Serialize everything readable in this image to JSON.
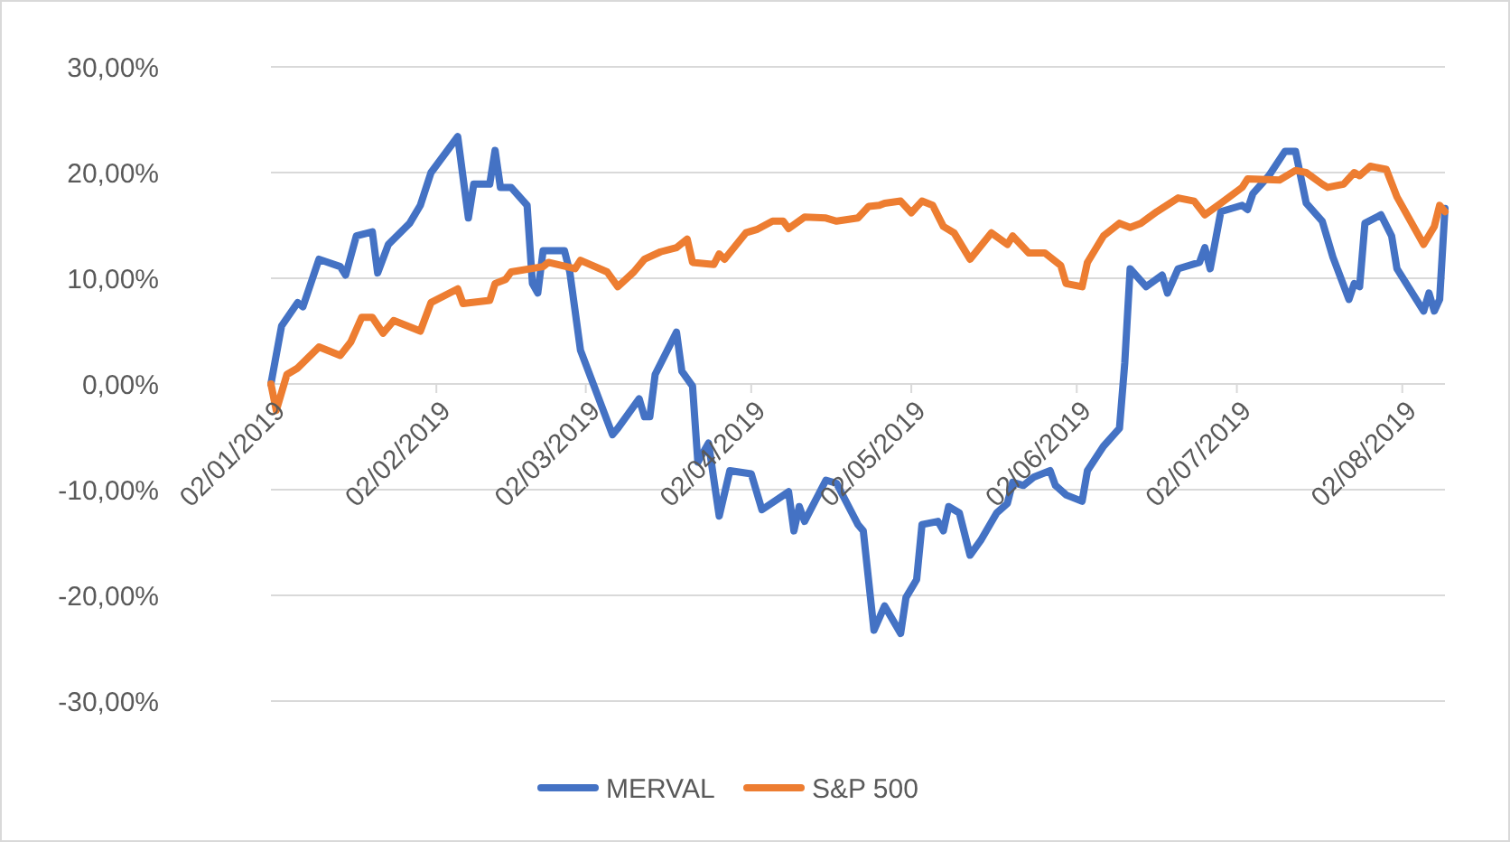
{
  "chart_data": {
    "type": "line",
    "legend": "bottom",
    "grid": "y",
    "line_style": "solid",
    "xlim": [
      "2019-01-02",
      "2019-08-10"
    ],
    "xticks": [
      {
        "value": "2019-01-02",
        "label": "02/01/2019"
      },
      {
        "value": "2019-02-02",
        "label": "02/02/2019"
      },
      {
        "value": "2019-03-02",
        "label": "02/03/2019"
      },
      {
        "value": "2019-04-02",
        "label": "02/04/2019"
      },
      {
        "value": "2019-05-02",
        "label": "02/05/2019"
      },
      {
        "value": "2019-06-02",
        "label": "02/06/2019"
      },
      {
        "value": "2019-07-02",
        "label": "02/07/2019"
      },
      {
        "value": "2019-08-02",
        "label": "02/08/2019"
      }
    ],
    "ylim": [
      -30,
      30
    ],
    "yticks": [
      {
        "value": -30,
        "label": "-30,00%"
      },
      {
        "value": -20,
        "label": "-20,00%"
      },
      {
        "value": -10,
        "label": "-10,00%"
      },
      {
        "value": 0,
        "label": "0,00%"
      },
      {
        "value": 10,
        "label": "10,00%"
      },
      {
        "value": 20,
        "label": "20,00%"
      },
      {
        "value": 30,
        "label": "30,00%"
      }
    ],
    "series": [
      {
        "name": "MERVAL",
        "color": "#4472c4",
        "x": [
          "2019-01-02",
          "2019-01-04",
          "2019-01-07",
          "2019-01-08",
          "2019-01-11",
          "2019-01-15",
          "2019-01-16",
          "2019-01-18",
          "2019-01-21",
          "2019-01-22",
          "2019-01-24",
          "2019-01-28",
          "2019-01-30",
          "2019-02-01",
          "2019-02-06",
          "2019-02-08",
          "2019-02-09",
          "2019-02-12",
          "2019-02-13",
          "2019-02-14",
          "2019-02-16",
          "2019-02-19",
          "2019-02-20",
          "2019-02-21",
          "2019-02-22",
          "2019-02-26",
          "2019-02-27",
          "2019-03-01",
          "2019-03-07",
          "2019-03-08",
          "2019-03-12",
          "2019-03-13",
          "2019-03-14",
          "2019-03-15",
          "2019-03-19",
          "2019-03-20",
          "2019-03-22",
          "2019-03-23",
          "2019-03-25",
          "2019-03-27",
          "2019-03-29",
          "2019-04-02",
          "2019-04-04",
          "2019-04-09",
          "2019-04-10",
          "2019-04-11",
          "2019-04-12",
          "2019-04-16",
          "2019-04-18",
          "2019-04-22",
          "2019-04-23",
          "2019-04-25",
          "2019-04-27",
          "2019-04-30",
          "2019-05-01",
          "2019-05-03",
          "2019-05-04",
          "2019-05-07",
          "2019-05-08",
          "2019-05-09",
          "2019-05-11",
          "2019-05-13",
          "2019-05-15",
          "2019-05-18",
          "2019-05-20",
          "2019-05-21",
          "2019-05-23",
          "2019-05-25",
          "2019-05-28",
          "2019-05-29",
          "2019-05-31",
          "2019-06-03",
          "2019-06-04",
          "2019-06-07",
          "2019-06-10",
          "2019-06-11",
          "2019-06-12",
          "2019-06-15",
          "2019-06-18",
          "2019-06-19",
          "2019-06-21",
          "2019-06-25",
          "2019-06-26",
          "2019-06-27",
          "2019-06-29",
          "2019-07-03",
          "2019-07-04",
          "2019-07-05",
          "2019-07-08",
          "2019-07-11",
          "2019-07-13",
          "2019-07-15",
          "2019-07-18",
          "2019-07-20",
          "2019-07-23",
          "2019-07-24",
          "2019-07-25",
          "2019-07-26",
          "2019-07-29",
          "2019-07-31",
          "2019-08-01",
          "2019-08-06",
          "2019-08-07",
          "2019-08-08",
          "2019-08-09",
          "2019-08-10"
        ],
        "values": [
          0,
          5.5,
          7.7,
          7.3,
          11.8,
          11.1,
          10.3,
          14.0,
          14.4,
          10.5,
          13.2,
          15.2,
          16.9,
          20.0,
          23.4,
          15.7,
          18.9,
          18.9,
          22.1,
          18.6,
          18.6,
          16.9,
          9.5,
          8.6,
          12.6,
          12.6,
          10.6,
          3.2,
          -4.8,
          -4.2,
          -1.4,
          -3.1,
          -3.1,
          0.9,
          4.9,
          1.2,
          -0.2,
          -7.4,
          -5.6,
          -12.5,
          -8.2,
          -8.5,
          -11.9,
          -10.2,
          -13.9,
          -11.6,
          -13.0,
          -9.1,
          -9.4,
          -13.3,
          -13.9,
          -23.3,
          -21.0,
          -23.6,
          -20.2,
          -18.5,
          -13.3,
          -13.0,
          -13.9,
          -11.6,
          -12.2,
          -16.2,
          -14.8,
          -12.2,
          -11.3,
          -9.3,
          -9.6,
          -8.8,
          -8.2,
          -9.6,
          -10.5,
          -11.1,
          -8.2,
          -5.9,
          -4.2,
          2.0,
          10.9,
          9.2,
          10.3,
          8.6,
          10.9,
          11.5,
          12.9,
          10.9,
          16.3,
          16.9,
          16.5,
          18.0,
          19.7,
          22.0,
          22.0,
          17.1,
          15.4,
          12.0,
          8.0,
          9.5,
          9.2,
          15.2,
          16.0,
          14.0,
          10.9,
          6.9,
          8.6,
          6.9,
          8.0,
          16.6
        ]
      },
      {
        "name": "S&P 500",
        "color": "#ed7d31",
        "x": [
          "2019-01-02",
          "2019-01-03",
          "2019-01-05",
          "2019-01-07",
          "2019-01-11",
          "2019-01-15",
          "2019-01-17",
          "2019-01-19",
          "2019-01-21",
          "2019-01-23",
          "2019-01-25",
          "2019-01-30",
          "2019-02-01",
          "2019-02-06",
          "2019-02-07",
          "2019-02-12",
          "2019-02-13",
          "2019-02-15",
          "2019-02-16",
          "2019-02-22",
          "2019-02-23",
          "2019-02-28",
          "2019-03-01",
          "2019-03-06",
          "2019-03-08",
          "2019-03-11",
          "2019-03-13",
          "2019-03-16",
          "2019-03-19",
          "2019-03-21",
          "2019-03-22",
          "2019-03-26",
          "2019-03-27",
          "2019-03-28",
          "2019-04-01",
          "2019-04-03",
          "2019-04-06",
          "2019-04-08",
          "2019-04-09",
          "2019-04-12",
          "2019-04-16",
          "2019-04-18",
          "2019-04-22",
          "2019-04-24",
          "2019-04-26",
          "2019-04-27",
          "2019-04-30",
          "2019-05-02",
          "2019-05-04",
          "2019-05-06",
          "2019-05-08",
          "2019-05-10",
          "2019-05-13",
          "2019-05-17",
          "2019-05-20",
          "2019-05-21",
          "2019-05-24",
          "2019-05-27",
          "2019-05-30",
          "2019-05-31",
          "2019-06-03",
          "2019-06-04",
          "2019-06-07",
          "2019-06-10",
          "2019-06-12",
          "2019-06-14",
          "2019-06-17",
          "2019-06-21",
          "2019-06-24",
          "2019-06-26",
          "2019-06-29",
          "2019-07-03",
          "2019-07-04",
          "2019-07-10",
          "2019-07-13",
          "2019-07-15",
          "2019-07-18",
          "2019-07-19",
          "2019-07-22",
          "2019-07-24",
          "2019-07-25",
          "2019-07-27",
          "2019-07-30",
          "2019-08-01",
          "2019-08-06",
          "2019-08-08",
          "2019-08-09",
          "2019-08-10"
        ],
        "values": [
          0,
          -2.5,
          0.9,
          1.5,
          3.5,
          2.7,
          4.0,
          6.3,
          6.3,
          4.8,
          6.0,
          5.0,
          7.7,
          9.0,
          7.6,
          7.9,
          9.5,
          9.9,
          10.6,
          11.1,
          11.5,
          10.9,
          11.7,
          10.6,
          9.2,
          10.6,
          11.8,
          12.5,
          12.9,
          13.7,
          11.5,
          11.3,
          12.3,
          11.8,
          14.3,
          14.6,
          15.4,
          15.4,
          14.7,
          15.8,
          15.7,
          15.4,
          15.7,
          16.8,
          16.9,
          17.1,
          17.3,
          16.2,
          17.3,
          16.9,
          14.9,
          14.3,
          11.8,
          14.3,
          13.2,
          14.0,
          12.4,
          12.4,
          11.2,
          9.5,
          9.2,
          11.5,
          14.0,
          15.2,
          14.8,
          15.2,
          16.3,
          17.6,
          17.3,
          16.0,
          17.1,
          18.6,
          19.4,
          19.3,
          20.2,
          20.0,
          18.9,
          18.6,
          18.9,
          20.0,
          19.7,
          20.6,
          20.3,
          17.7,
          13.2,
          14.9,
          16.9,
          16.3
        ]
      }
    ]
  }
}
